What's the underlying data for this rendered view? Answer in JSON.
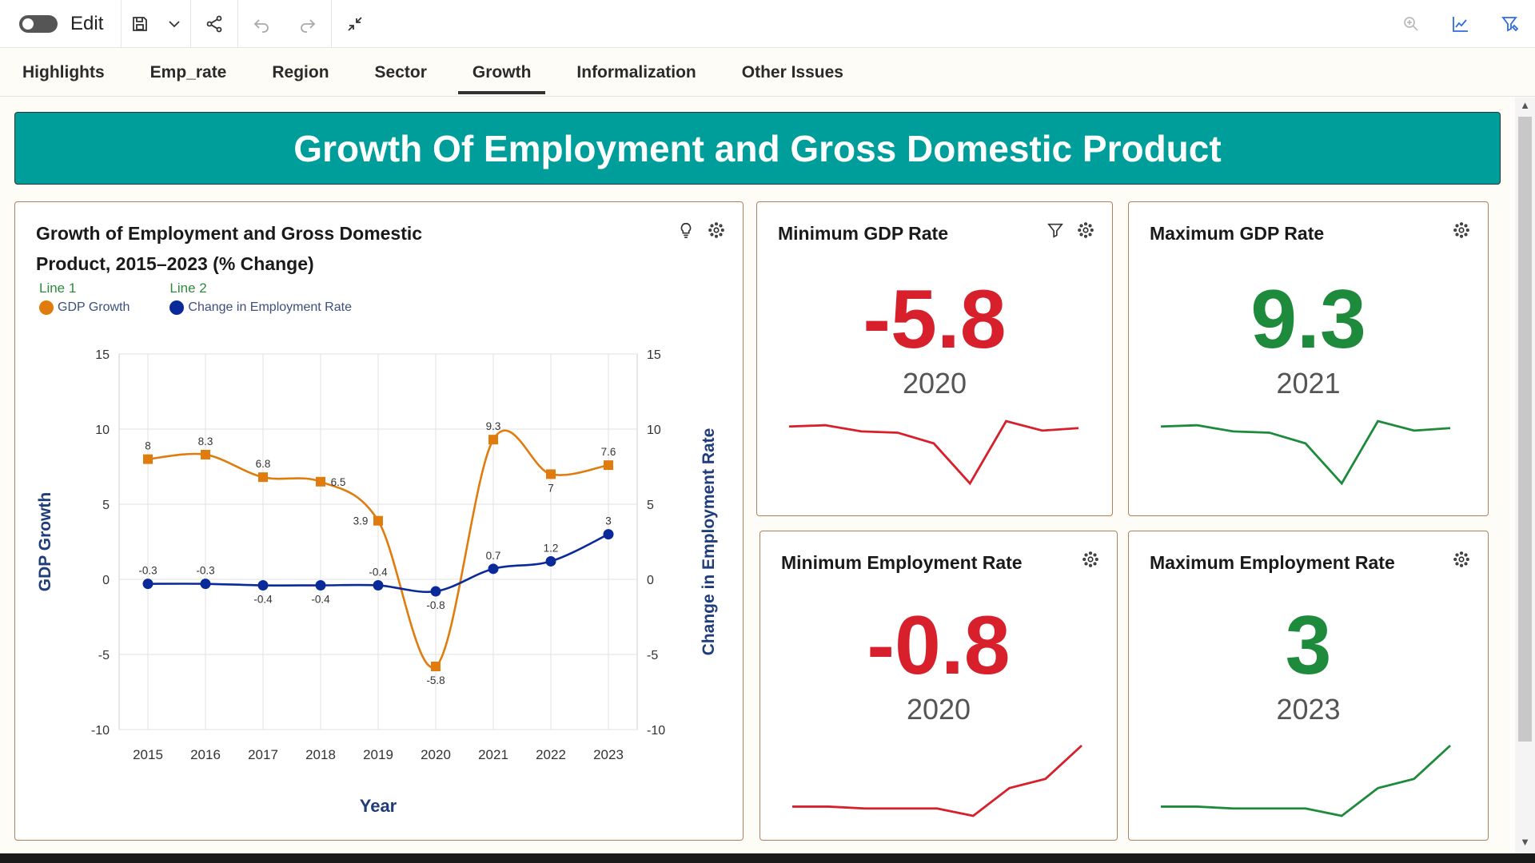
{
  "toolbar": {
    "edit_label": "Edit"
  },
  "tabs": [
    {
      "label": "Highlights"
    },
    {
      "label": "Emp_rate"
    },
    {
      "label": "Region"
    },
    {
      "label": "Sector"
    },
    {
      "label": "Growth"
    },
    {
      "label": "Informalization"
    },
    {
      "label": "Other Issues"
    }
  ],
  "active_tab": "Growth",
  "banner": {
    "title": "Growth Of Employment and Gross Domestic Product"
  },
  "colors": {
    "teal": "#009e9a",
    "red": "#d7202b",
    "green": "#1e8a3c",
    "orange": "#e07b0e",
    "navy": "#0a2a9a"
  },
  "chart_card": {
    "title_line1": "Growth of Employment and Gross Domestic",
    "title_line2": "Product, 2015–2023 (% Change)",
    "legend": [
      {
        "head": "Line 1",
        "label": "GDP Growth"
      },
      {
        "head": "Line 2",
        "label": "Change in Employment Rate"
      }
    ]
  },
  "kpis": {
    "min_gdp": {
      "title": "Minimum GDP Rate",
      "value": "-5.8",
      "year": "2020"
    },
    "max_gdp": {
      "title": "Maximum GDP Rate",
      "value": "9.3",
      "year": "2021"
    },
    "min_emp": {
      "title": "Minimum Employment Rate",
      "value": "-0.8",
      "year": "2020"
    },
    "max_emp": {
      "title": "Maximum Employment Rate",
      "value": "3",
      "year": "2023"
    }
  },
  "chart_data": {
    "type": "line",
    "title": "Growth of Employment and Gross Domestic Product, 2015–2023 (% Change)",
    "xlabel": "Year",
    "ylabel": "GDP Growth",
    "y2label": "Change in Employment Rate",
    "categories": [
      "2015",
      "2016",
      "2017",
      "2018",
      "2019",
      "2020",
      "2021",
      "2022",
      "2023"
    ],
    "ylim": [
      -10,
      15
    ],
    "y2lim": [
      -10,
      15
    ],
    "yticks": [
      -10,
      -5,
      0,
      5,
      10,
      15
    ],
    "grid": true,
    "series": [
      {
        "name": "GDP Growth",
        "axis": "left",
        "marker": "square",
        "color": "#e07b0e",
        "values": [
          8,
          8.3,
          6.8,
          6.5,
          3.9,
          -5.8,
          9.3,
          7,
          7.6
        ],
        "labels": [
          "8",
          "8.3",
          "6.8",
          "6.5",
          "3.9",
          "-5.8",
          "9.3",
          "7",
          "7.6"
        ]
      },
      {
        "name": "Change in Employment Rate",
        "axis": "right",
        "marker": "circle",
        "color": "#0a2a9a",
        "values": [
          -0.3,
          -0.3,
          -0.4,
          -0.4,
          -0.4,
          -0.8,
          0.7,
          1.2,
          3
        ],
        "labels": [
          "-0.3",
          "-0.3",
          "-0.4",
          "-0.4",
          "-0.4",
          "-0.8",
          "0.7",
          "1.2",
          "3"
        ]
      }
    ]
  }
}
